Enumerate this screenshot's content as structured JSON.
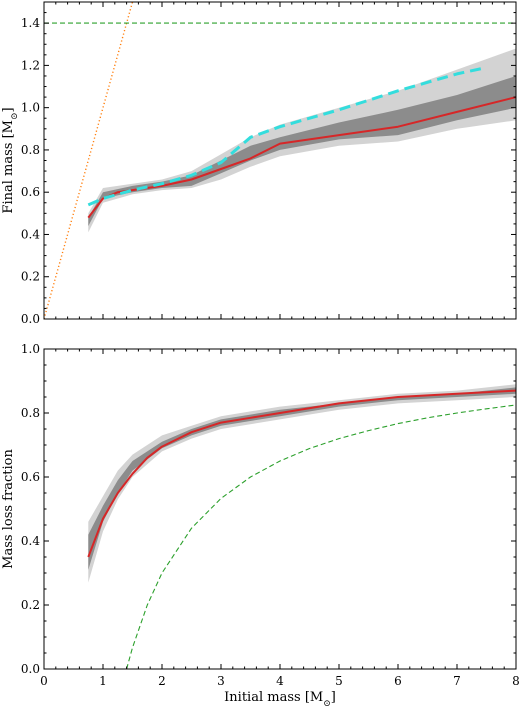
{
  "chart_data": [
    {
      "type": "line",
      "xlim": [
        0,
        8
      ],
      "ylim": [
        0,
        1.5
      ],
      "xticks": [
        0,
        1,
        2,
        3,
        4,
        5,
        6,
        7,
        8
      ],
      "yticks": [
        0.0,
        0.2,
        0.4,
        0.6,
        0.8,
        1.0,
        1.2,
        1.4
      ],
      "ytick_labels": [
        "0.0",
        "0.2",
        "0.4",
        "0.6",
        "0.8",
        "1.0",
        "1.2",
        "1.4"
      ],
      "xtick_labels_shown": false,
      "ylabel_text": "Final mass [M",
      "ylabel_unit_symbol": "⊙",
      "ylabel_close": "]",
      "grid": false,
      "series": [
        {
          "style": "band-outer",
          "color": "#d3d3d3",
          "x": [
            0.75,
            1.0,
            1.5,
            2.0,
            2.5,
            3.0,
            3.5,
            4.0,
            5.0,
            6.0,
            7.0,
            8.0
          ],
          "upper": [
            0.5,
            0.62,
            0.64,
            0.66,
            0.7,
            0.78,
            0.86,
            0.92,
            1.0,
            1.08,
            1.18,
            1.28
          ],
          "lower": [
            0.41,
            0.55,
            0.59,
            0.61,
            0.62,
            0.66,
            0.72,
            0.77,
            0.82,
            0.84,
            0.9,
            0.94
          ]
        },
        {
          "style": "band-inner",
          "color": "#8c8c8c",
          "x": [
            0.75,
            1.0,
            1.5,
            2.0,
            2.5,
            3.0,
            3.5,
            4.0,
            5.0,
            6.0,
            7.0,
            8.0
          ],
          "upper": [
            0.48,
            0.6,
            0.63,
            0.65,
            0.68,
            0.75,
            0.82,
            0.86,
            0.93,
            0.99,
            1.06,
            1.15
          ],
          "lower": [
            0.44,
            0.57,
            0.6,
            0.62,
            0.63,
            0.69,
            0.75,
            0.8,
            0.85,
            0.87,
            0.94,
            1.0
          ]
        },
        {
          "style": "solid",
          "color": "#d62728",
          "x": [
            0.75,
            1.0,
            1.25,
            1.5,
            2.0,
            2.5,
            3.0,
            3.5,
            4.0,
            5.0,
            6.0,
            7.0,
            8.0
          ],
          "y": [
            0.48,
            0.57,
            0.6,
            0.61,
            0.63,
            0.66,
            0.71,
            0.76,
            0.83,
            0.87,
            0.91,
            0.98,
            1.05
          ]
        },
        {
          "style": "dashed",
          "color": "#33dddd",
          "x": [
            0.75,
            1.0,
            1.5,
            2.0,
            2.5,
            3.0,
            3.5,
            4.0,
            5.0,
            6.0,
            7.0,
            7.5
          ],
          "y": [
            0.54,
            0.57,
            0.61,
            0.64,
            0.68,
            0.74,
            0.86,
            0.91,
            0.99,
            1.08,
            1.16,
            1.19
          ]
        },
        {
          "style": "dotted",
          "color": "#ff7f0e",
          "x": [
            0.0,
            1.5
          ],
          "y": [
            0.0,
            1.5
          ]
        },
        {
          "style": "dashed-thin",
          "color": "#2ca02c",
          "x": [
            0.0,
            8.0
          ],
          "y": [
            1.4,
            1.4
          ]
        }
      ]
    },
    {
      "type": "line",
      "xlim": [
        0,
        8
      ],
      "ylim": [
        0,
        1.0
      ],
      "xticks": [
        0,
        1,
        2,
        3,
        4,
        5,
        6,
        7,
        8
      ],
      "xtick_labels": [
        "0",
        "1",
        "2",
        "3",
        "4",
        "5",
        "6",
        "7",
        "8"
      ],
      "yticks": [
        0.0,
        0.2,
        0.4,
        0.6,
        0.8,
        1.0
      ],
      "ytick_labels": [
        "0.0",
        "0.2",
        "0.4",
        "0.6",
        "0.8",
        "1.0"
      ],
      "xlabel_text": "Initial mass [M",
      "xlabel_unit_symbol": "⊙",
      "xlabel_close": "]",
      "ylabel": "Mass loss fraction",
      "grid": false,
      "series": [
        {
          "style": "band-outer",
          "color": "#d3d3d3",
          "x": [
            0.75,
            1.0,
            1.25,
            1.5,
            2.0,
            2.5,
            3.0,
            4.0,
            5.0,
            6.0,
            7.0,
            8.0
          ],
          "upper": [
            0.46,
            0.54,
            0.62,
            0.67,
            0.73,
            0.76,
            0.79,
            0.82,
            0.84,
            0.86,
            0.87,
            0.89
          ],
          "lower": [
            0.27,
            0.43,
            0.53,
            0.6,
            0.68,
            0.72,
            0.75,
            0.78,
            0.81,
            0.83,
            0.84,
            0.85
          ]
        },
        {
          "style": "band-inner",
          "color": "#8c8c8c",
          "x": [
            0.75,
            1.0,
            1.25,
            1.5,
            2.0,
            2.5,
            3.0,
            4.0,
            5.0,
            6.0,
            7.0,
            8.0
          ],
          "upper": [
            0.42,
            0.51,
            0.59,
            0.65,
            0.71,
            0.75,
            0.78,
            0.81,
            0.83,
            0.85,
            0.86,
            0.88
          ],
          "lower": [
            0.31,
            0.46,
            0.55,
            0.62,
            0.69,
            0.73,
            0.76,
            0.79,
            0.82,
            0.84,
            0.85,
            0.86
          ]
        },
        {
          "style": "solid",
          "color": "#d62728",
          "x": [
            0.75,
            1.0,
            1.25,
            1.5,
            1.75,
            2.0,
            2.5,
            3.0,
            3.5,
            4.0,
            5.0,
            6.0,
            7.0,
            8.0
          ],
          "y": [
            0.35,
            0.47,
            0.55,
            0.61,
            0.66,
            0.695,
            0.74,
            0.77,
            0.785,
            0.8,
            0.83,
            0.85,
            0.86,
            0.87
          ]
        },
        {
          "style": "dashed-thin",
          "color": "#2ca02c",
          "x": [
            1.4,
            1.5,
            1.75,
            2.0,
            2.5,
            3.0,
            3.5,
            4.0,
            4.5,
            5.0,
            5.5,
            6.0,
            6.5,
            7.0,
            7.5,
            8.0
          ],
          "y": [
            0.0,
            0.067,
            0.2,
            0.3,
            0.44,
            0.533,
            0.6,
            0.65,
            0.689,
            0.72,
            0.745,
            0.767,
            0.785,
            0.8,
            0.813,
            0.825
          ]
        }
      ]
    }
  ]
}
